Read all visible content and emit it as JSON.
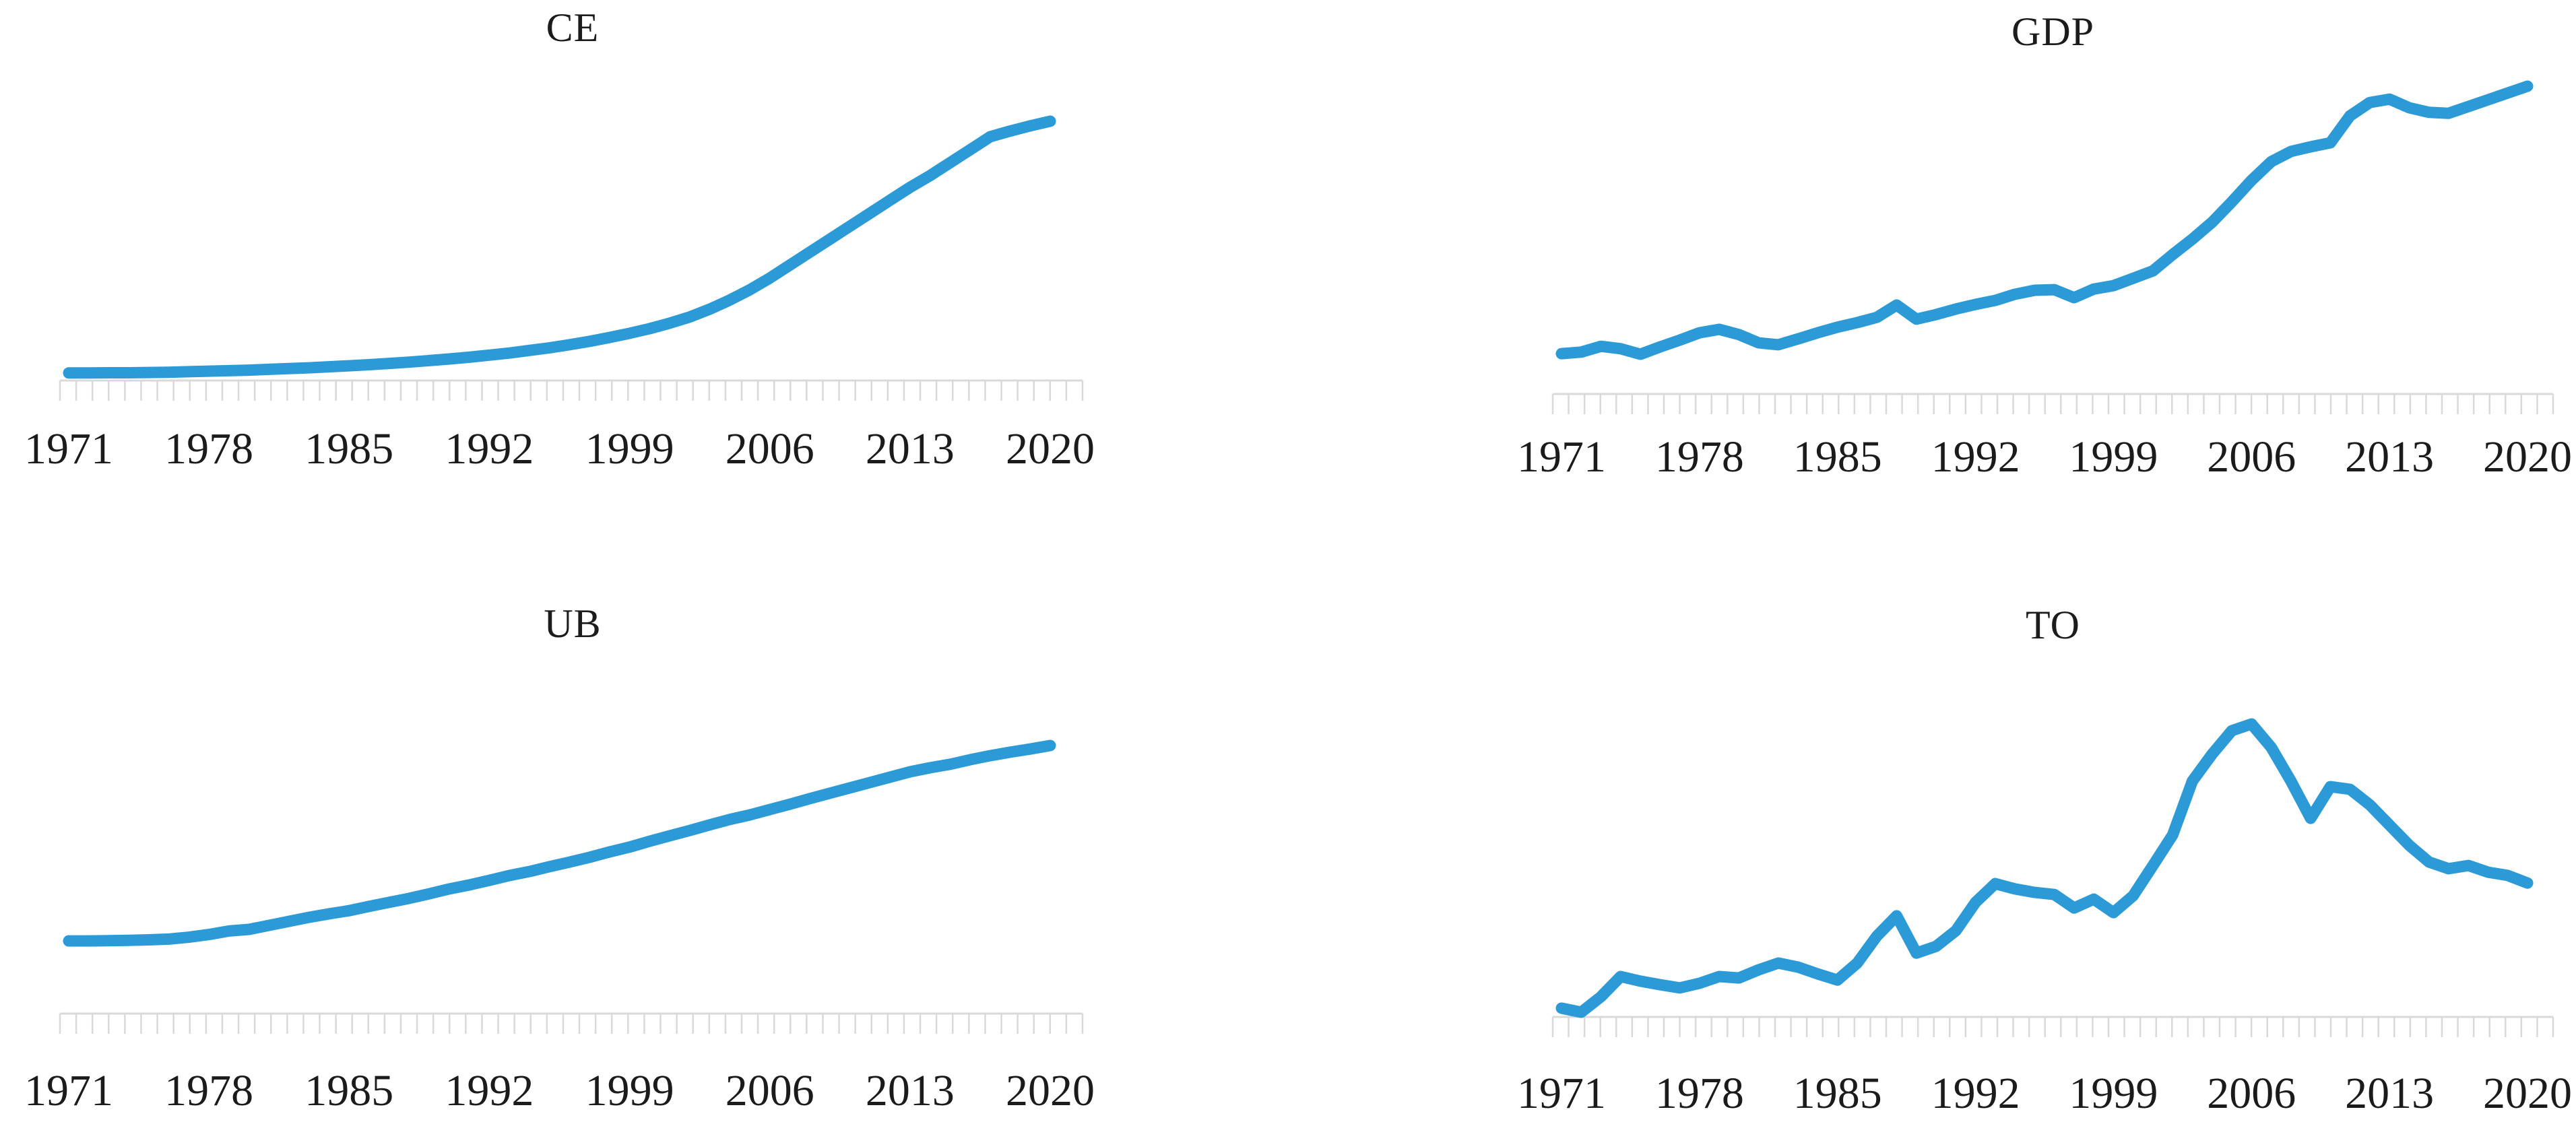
{
  "page": {
    "background": "#ffffff",
    "description": "Figure with four time-series line charts (CE, GDP, UB, TO), annual data 1971-2020, no visible y-axis"
  },
  "colors": {
    "line": "#2b9ad7",
    "axis": "#d9d9d9",
    "tick": "#d9d9d9",
    "label": "#1b1b1b",
    "title": "#1c1c1c"
  },
  "x_axis": {
    "start_year": 1971,
    "end_year": 2020,
    "tick_labels": [
      "1971",
      "1978",
      "1985",
      "1992",
      "1999",
      "2006",
      "2013",
      "2020"
    ],
    "minor_ticks": "dense light-gray ticks along baseline, no y-axis shown"
  },
  "chart_data": [
    {
      "type": "line",
      "title": "CE",
      "xlabel": "",
      "ylabel": "",
      "grid": false,
      "legend": "none",
      "y_axis": "hidden",
      "ylim": [
        0,
        105
      ],
      "units": "relative level (no y-axis labels shown), 100 = 2020 value",
      "years": [
        1971,
        1972,
        1973,
        1974,
        1975,
        1976,
        1977,
        1978,
        1979,
        1980,
        1981,
        1982,
        1983,
        1984,
        1985,
        1986,
        1987,
        1988,
        1989,
        1990,
        1991,
        1992,
        1993,
        1994,
        1995,
        1996,
        1997,
        1998,
        1999,
        2000,
        2001,
        2002,
        2003,
        2004,
        2005,
        2006,
        2007,
        2008,
        2009,
        2010,
        2011,
        2012,
        2013,
        2014,
        2015,
        2016,
        2017,
        2018,
        2019,
        2020
      ],
      "values": [
        2.9,
        2.9,
        3.0,
        3.0,
        3.1,
        3.2,
        3.4,
        3.6,
        3.8,
        4.0,
        4.3,
        4.6,
        4.9,
        5.3,
        5.7,
        6.1,
        6.6,
        7.1,
        7.7,
        8.3,
        9.0,
        9.8,
        10.6,
        11.6,
        12.6,
        13.8,
        15.1,
        16.6,
        18.2,
        20.0,
        22.1,
        24.5,
        27.5,
        31.0,
        35.0,
        39.5,
        44.5,
        49.5,
        54.5,
        59.5,
        64.5,
        69.5,
        74.5,
        79.0,
        84.0,
        89.0,
        94.0,
        96.2,
        98.2,
        100.0
      ]
    },
    {
      "type": "line",
      "title": "GDP",
      "xlabel": "",
      "ylabel": "",
      "grid": false,
      "legend": "none",
      "y_axis": "hidden",
      "ylim": [
        0,
        105
      ],
      "units": "relative level (no y-axis labels shown), 100 = 2020 value",
      "years": [
        1971,
        1972,
        1973,
        1974,
        1975,
        1976,
        1977,
        1978,
        1979,
        1980,
        1981,
        1982,
        1983,
        1984,
        1985,
        1986,
        1987,
        1988,
        1989,
        1990,
        1991,
        1992,
        1993,
        1994,
        1995,
        1996,
        1997,
        1998,
        1999,
        2000,
        2001,
        2002,
        2003,
        2004,
        2005,
        2006,
        2007,
        2008,
        2009,
        2010,
        2011,
        2012,
        2013,
        2014,
        2015,
        2016,
        2017,
        2018,
        2019,
        2020
      ],
      "values": [
        13.1,
        13.6,
        15.5,
        14.7,
        12.9,
        15.3,
        17.5,
        19.9,
        21.0,
        19.3,
        16.6,
        16.0,
        17.9,
        19.9,
        21.7,
        23.2,
        24.9,
        28.9,
        24.3,
        25.8,
        27.6,
        29.1,
        30.4,
        32.4,
        33.7,
        33.9,
        31.3,
        34.1,
        35.2,
        37.6,
        40.0,
        45.3,
        50.3,
        55.8,
        62.4,
        69.4,
        75.5,
        78.8,
        80.3,
        81.6,
        90.4,
        94.7,
        95.8,
        93.0,
        91.5,
        91.2,
        93.4,
        95.6,
        97.8,
        100.0
      ]
    },
    {
      "type": "line",
      "title": "UB",
      "xlabel": "",
      "ylabel": "",
      "grid": false,
      "legend": "none",
      "y_axis": "hidden",
      "ylim": [
        0,
        105
      ],
      "units": "relative level (no y-axis labels shown), 100 = 2020 value",
      "years": [
        1971,
        1972,
        1973,
        1974,
        1975,
        1976,
        1977,
        1978,
        1979,
        1980,
        1981,
        1982,
        1983,
        1984,
        1985,
        1986,
        1987,
        1988,
        1989,
        1990,
        1991,
        1992,
        1993,
        1994,
        1995,
        1996,
        1997,
        1998,
        1999,
        2000,
        2001,
        2002,
        2003,
        2004,
        2005,
        2006,
        2007,
        2008,
        2009,
        2010,
        2011,
        2012,
        2013,
        2014,
        2015,
        2016,
        2017,
        2018,
        2019,
        2020
      ],
      "values": [
        27.1,
        27.1,
        27.2,
        27.3,
        27.5,
        27.8,
        28.5,
        29.5,
        30.8,
        31.4,
        32.9,
        34.4,
        35.9,
        37.2,
        38.4,
        40.0,
        41.5,
        43.0,
        44.7,
        46.5,
        48.0,
        49.7,
        51.5,
        53.0,
        54.8,
        56.5,
        58.3,
        60.3,
        62.1,
        64.3,
        66.3,
        68.3,
        70.4,
        72.4,
        74.1,
        76.1,
        78.1,
        80.2,
        82.2,
        84.2,
        86.2,
        88.2,
        90.2,
        91.7,
        93.0,
        94.7,
        96.2,
        97.5,
        98.7,
        100.0
      ]
    },
    {
      "type": "line",
      "title": "TO",
      "xlabel": "",
      "ylabel": "",
      "grid": false,
      "legend": "none",
      "y_axis": "hidden",
      "ylim": [
        0,
        105
      ],
      "units": "relative level (no y-axis labels shown), 100 = 2006 peak value",
      "years": [
        1971,
        1972,
        1973,
        1974,
        1975,
        1976,
        1977,
        1978,
        1979,
        1980,
        1981,
        1982,
        1983,
        1984,
        1985,
        1986,
        1987,
        1988,
        1989,
        1990,
        1991,
        1992,
        1993,
        1994,
        1995,
        1996,
        1997,
        1998,
        1999,
        2000,
        2001,
        2002,
        2003,
        2004,
        2005,
        2006,
        2007,
        2008,
        2009,
        2010,
        2011,
        2012,
        2013,
        2014,
        2015,
        2016,
        2017,
        2018,
        2019,
        2020
      ],
      "values": [
        3.0,
        1.6,
        6.9,
        13.8,
        12.2,
        11.0,
        9.9,
        11.5,
        13.8,
        13.3,
        16.1,
        18.4,
        17.0,
        14.7,
        12.6,
        18.4,
        27.6,
        34.5,
        21.8,
        24.1,
        29.4,
        39.1,
        45.5,
        43.7,
        42.5,
        41.8,
        37.2,
        40.2,
        35.6,
        41.4,
        51.7,
        62.1,
        80.5,
        89.7,
        97.7,
        100.0,
        92.0,
        80.5,
        67.8,
        78.6,
        77.7,
        72.4,
        65.5,
        58.6,
        52.9,
        50.6,
        51.7,
        49.4,
        48.3,
        45.7
      ]
    }
  ]
}
